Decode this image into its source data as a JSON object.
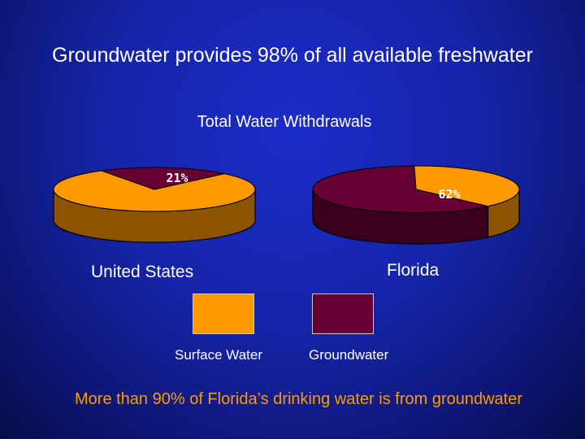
{
  "slide": {
    "title": "Groundwater provides 98% of all available freshwater",
    "footer": "More than 90% of Florida’s drinking water is from groundwater"
  },
  "colors": {
    "surface_water": "#ff9900",
    "groundwater": "#660033"
  },
  "chart_data": [
    {
      "type": "pie",
      "title": "Total Water Withdrawals",
      "label": "United States",
      "categories": [
        "Surface Water",
        "Groundwater"
      ],
      "values": [
        79,
        21
      ],
      "value_labels": [
        "",
        "21%"
      ]
    },
    {
      "type": "pie",
      "title": "Total Water Withdrawals",
      "label": "Florida",
      "categories": [
        "Surface Water",
        "Groundwater"
      ],
      "values": [
        38,
        62
      ],
      "value_labels": [
        "",
        "62%"
      ]
    }
  ],
  "legend": {
    "items": [
      {
        "name": "Surface Water"
      },
      {
        "name": "Groundwater"
      }
    ]
  }
}
